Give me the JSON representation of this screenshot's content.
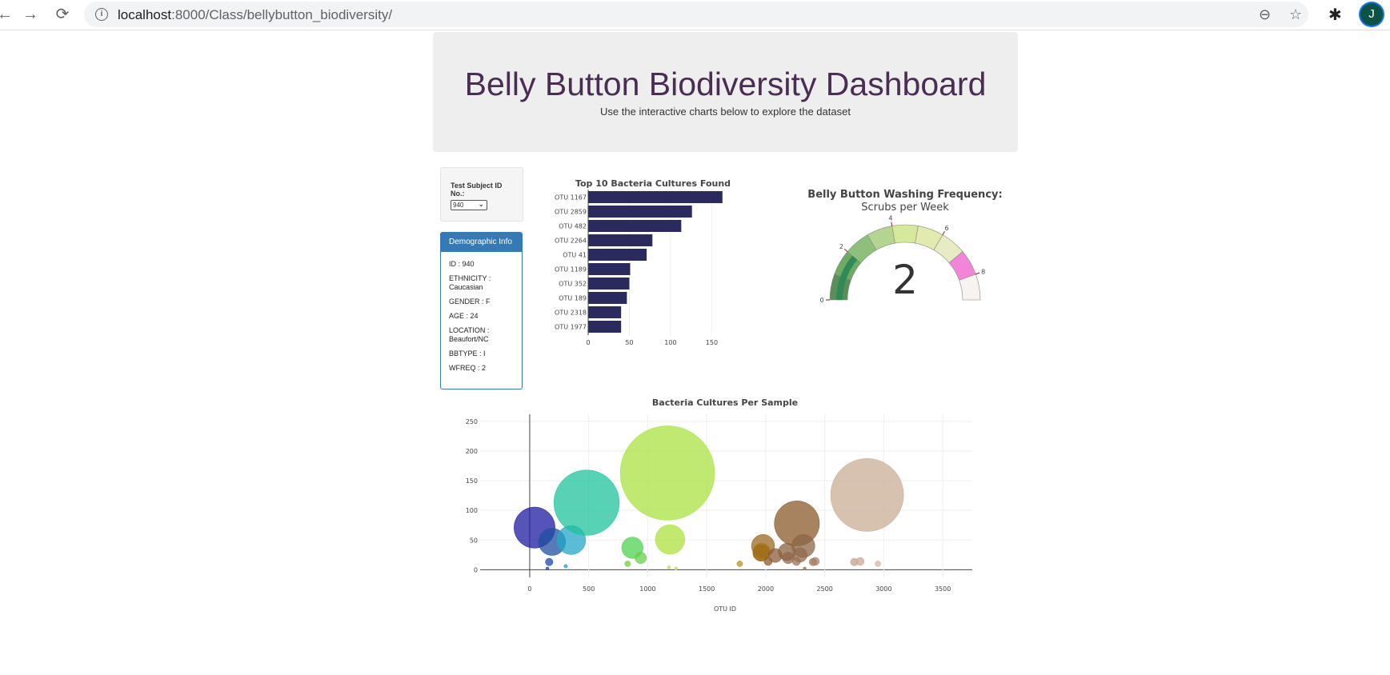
{
  "browser": {
    "back_icon": "arrow-left-icon",
    "forward_icon": "arrow-right-icon",
    "reload_icon": "reload-icon",
    "url_host": "localhost",
    "url_path": ":8000/Class/bellybutton_biodiversity/",
    "zoom_icon": "zoom-icon",
    "star_icon": "star-icon",
    "extensions_icon": "puzzle-icon",
    "profile_initial": "J"
  },
  "header": {
    "title": "Belly Button Biodiversity Dashboard",
    "subtitle": "Use the interactive charts below to explore the dataset"
  },
  "selector": {
    "label": "Test Subject ID No.:",
    "selected": "940"
  },
  "demographics": {
    "heading": "Demographic Info",
    "rows": [
      "ID : 940",
      "ETHNICITY : Caucasian",
      "GENDER : F",
      "AGE : 24",
      "LOCATION : Beaufort/NC",
      "BBTYPE : I",
      "WFREQ : 2"
    ]
  },
  "colors": {
    "bar": "#2b2a5e",
    "title": "#4a2d52",
    "panel": "#337ab7",
    "gauge_needle": "#2f8a58"
  },
  "chart_data": [
    {
      "type": "bar",
      "orientation": "horizontal",
      "title": "Top 10 Bacteria Cultures Found",
      "categories": [
        "OTU 1167",
        "OTU 2859",
        "OTU 482",
        "OTU 2264",
        "OTU 41",
        "OTU 1189",
        "OTU 352",
        "OTU 189",
        "OTU 2318",
        "OTU 1977"
      ],
      "values": [
        163,
        126,
        113,
        78,
        71,
        51,
        50,
        47,
        40,
        40
      ],
      "xticks": [
        0,
        50,
        100,
        150
      ],
      "xlim": [
        0,
        170
      ]
    },
    {
      "type": "gauge",
      "title": "Belly Button Washing Frequency:",
      "subtitle": "Scrubs per Week",
      "value": 2,
      "range": [
        0,
        9
      ],
      "ticks": [
        0,
        2,
        4,
        6,
        8
      ],
      "steps": [
        {
          "range": [
            0,
            1
          ],
          "color": "#5a8f5a"
        },
        {
          "range": [
            1,
            2
          ],
          "color": "#6faa64"
        },
        {
          "range": [
            2,
            3
          ],
          "color": "#8cc07b"
        },
        {
          "range": [
            3,
            4
          ],
          "color": "#b4d48f"
        },
        {
          "range": [
            4,
            5
          ],
          "color": "#d6e89a"
        },
        {
          "range": [
            5,
            6
          ],
          "color": "#e3eab0"
        },
        {
          "range": [
            6,
            7
          ],
          "color": "#e8ecc4"
        },
        {
          "range": [
            7,
            8
          ],
          "color": "#f285d8"
        },
        {
          "range": [
            8,
            9
          ],
          "color": "#f7f3ee"
        }
      ]
    },
    {
      "type": "scatter",
      "title": "Bacteria Cultures Per Sample",
      "xlabel": "OTU ID",
      "xticks": [
        0,
        500,
        1000,
        1500,
        2000,
        2500,
        3000,
        3500
      ],
      "yticks": [
        0,
        50,
        100,
        150,
        200,
        250
      ],
      "xlim": [
        -420,
        3750
      ],
      "ylim": [
        -13,
        262
      ],
      "points": [
        {
          "x": 41,
          "y": 71,
          "color": "#1e1b9e"
        },
        {
          "x": 189,
          "y": 47,
          "color": "#1f4fa0"
        },
        {
          "x": 352,
          "y": 50,
          "color": "#23a7c7"
        },
        {
          "x": 482,
          "y": 113,
          "color": "#1fc39b"
        },
        {
          "x": 165,
          "y": 13,
          "color": "#1f44b0"
        },
        {
          "x": 305,
          "y": 6,
          "color": "#1fa0c4"
        },
        {
          "x": 870,
          "y": 37,
          "color": "#4fd14f"
        },
        {
          "x": 940,
          "y": 20,
          "color": "#66cf44"
        },
        {
          "x": 830,
          "y": 10,
          "color": "#6ad040"
        },
        {
          "x": 1167,
          "y": 163,
          "color": "#a9e241"
        },
        {
          "x": 1189,
          "y": 51,
          "color": "#aee040"
        },
        {
          "x": 1180,
          "y": 4,
          "color": "#bfe050"
        },
        {
          "x": 1780,
          "y": 10,
          "color": "#c0901a"
        },
        {
          "x": 1977,
          "y": 40,
          "color": "#9a6b20"
        },
        {
          "x": 1960,
          "y": 28,
          "color": "#9a6a10"
        },
        {
          "x": 1965,
          "y": 30,
          "color": "#a07018"
        },
        {
          "x": 2020,
          "y": 14,
          "color": "#8b5a28"
        },
        {
          "x": 2080,
          "y": 24,
          "color": "#8b5e3c"
        },
        {
          "x": 2180,
          "y": 30,
          "color": "#8b6040"
        },
        {
          "x": 2190,
          "y": 20,
          "color": "#906548"
        },
        {
          "x": 2264,
          "y": 78,
          "color": "#8b5a2b"
        },
        {
          "x": 2318,
          "y": 40,
          "color": "#8b6545"
        },
        {
          "x": 2290,
          "y": 25,
          "color": "#936a4c"
        },
        {
          "x": 2260,
          "y": 14,
          "color": "#9a7050"
        },
        {
          "x": 2400,
          "y": 13,
          "color": "#a07a5a"
        },
        {
          "x": 2420,
          "y": 14,
          "color": "#a8806a"
        },
        {
          "x": 2750,
          "y": 13,
          "color": "#c0a090"
        },
        {
          "x": 2800,
          "y": 14,
          "color": "#c8aa98"
        },
        {
          "x": 2859,
          "y": 126,
          "color": "#c9ad96"
        },
        {
          "x": 2950,
          "y": 10,
          "color": "#d2b8a6"
        },
        {
          "x": 150,
          "y": 2,
          "color": "#1f44b0"
        },
        {
          "x": 1240,
          "y": 2,
          "color": "#c0e050"
        },
        {
          "x": 2330,
          "y": 2,
          "color": "#a07050"
        }
      ]
    }
  ]
}
